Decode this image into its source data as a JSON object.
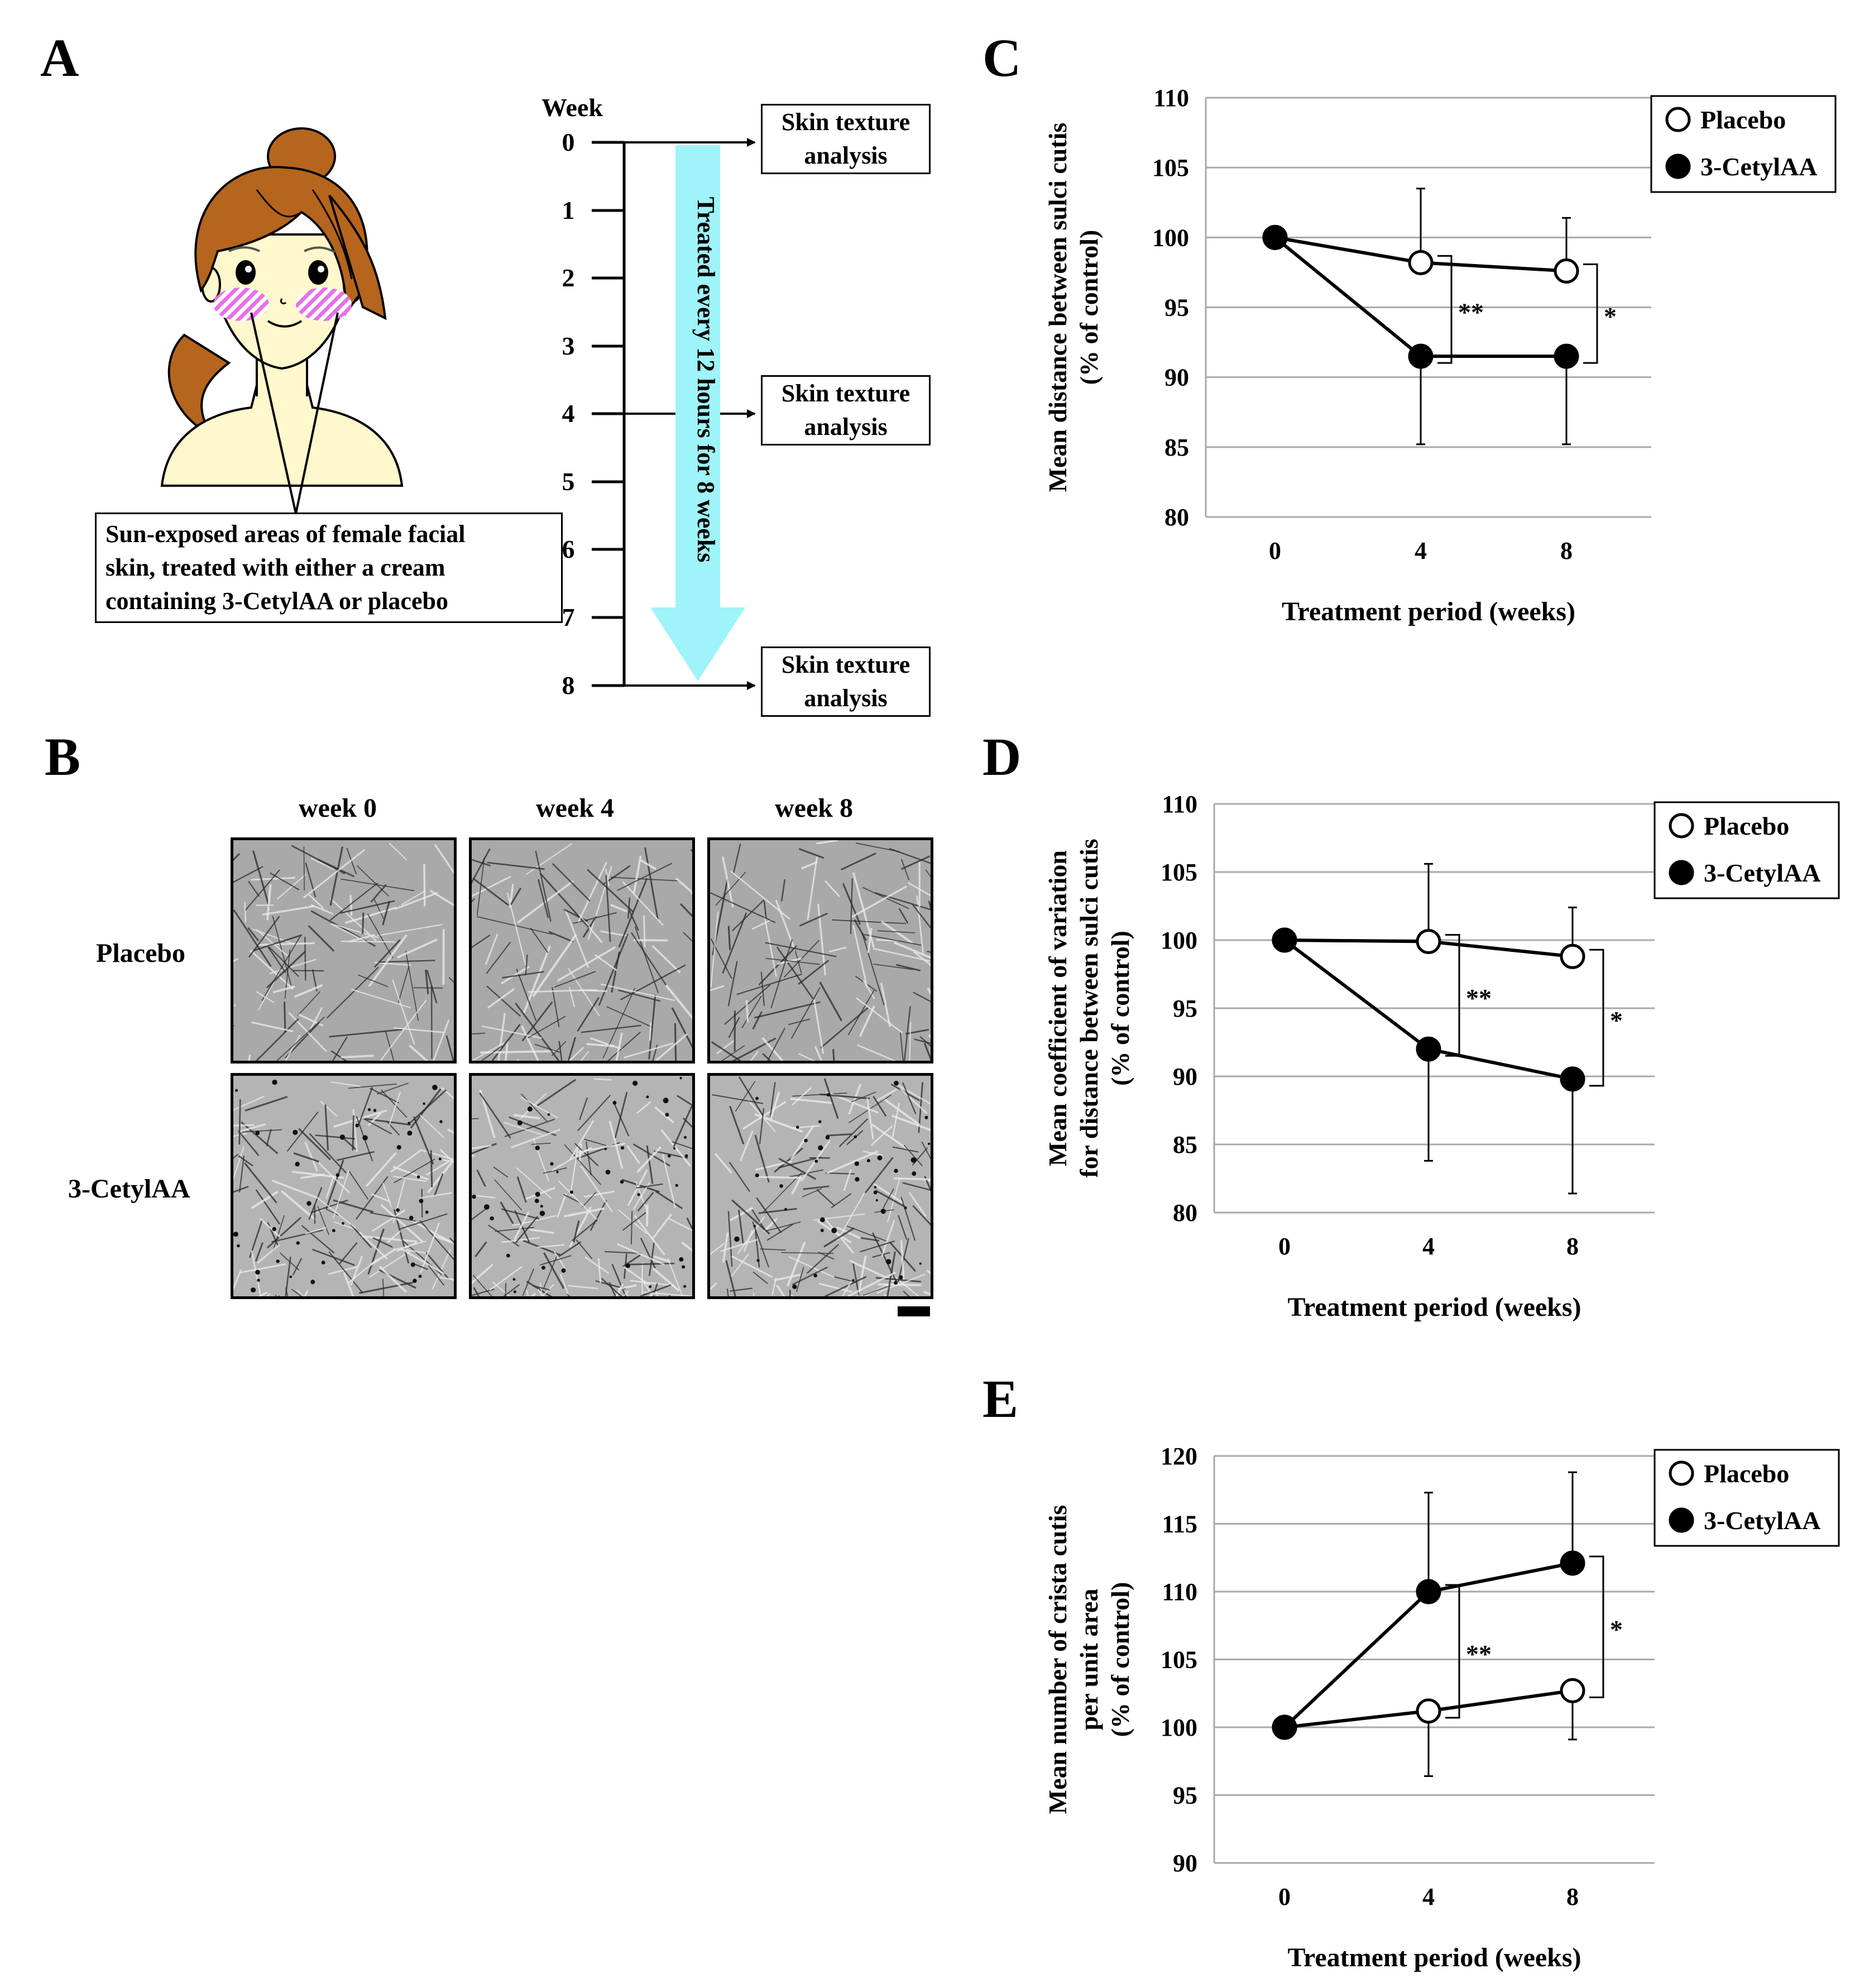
{
  "panels": {
    "a": "A",
    "b": "B",
    "c": "C",
    "d": "D",
    "e": "E"
  },
  "panelA": {
    "caption": [
      "Sun-exposed areas of female facial",
      "skin, treated with either a cream",
      "containing 3-CetylAA or placebo"
    ],
    "week_label": "Week",
    "weeks": [
      "0",
      "1",
      "2",
      "3",
      "4",
      "5",
      "6",
      "7",
      "8"
    ],
    "skin_box": [
      "Skin texture",
      "analysis"
    ],
    "treatment_arrow_text": "Treated every 12 hours for 8 weeks",
    "colors": {
      "hair": "#b5651d",
      "skin": "#fff8cc",
      "cheek": "#e870e8",
      "arrow": "#9ef4f8"
    }
  },
  "panelB": {
    "columns": [
      "week 0",
      "week 4",
      "week 8"
    ],
    "rows": [
      "Placebo",
      "3-CetylAA"
    ]
  },
  "chart_data": [
    {
      "type": "line",
      "panel": "C",
      "xlabel": "Treatment period (weeks)",
      "ylabel": [
        "Mean distance between sulci cutis",
        "(% of control)"
      ],
      "x": [
        0,
        4,
        8
      ],
      "ylim": [
        80,
        110
      ],
      "yticks": [
        80,
        85,
        90,
        95,
        100,
        105,
        110
      ],
      "grid": true,
      "legend": "top-right",
      "series": [
        {
          "name": "Placebo",
          "marker": "open-circle",
          "values": [
            100,
            98.2,
            97.6
          ],
          "err": [
            0,
            5.3,
            3.8
          ]
        },
        {
          "name": "3-CetylAA",
          "marker": "filled-circle",
          "values": [
            100,
            91.5,
            91.5
          ],
          "err": [
            0,
            6.3,
            6.3
          ]
        }
      ],
      "significance": [
        {
          "x": 4,
          "label": "**"
        },
        {
          "x": 8,
          "label": "*"
        }
      ]
    },
    {
      "type": "line",
      "panel": "D",
      "xlabel": "Treatment period (weeks)",
      "ylabel": [
        "Mean coefficient of variation",
        "for distance between sulci cutis",
        "(% of control)"
      ],
      "x": [
        0,
        4,
        8
      ],
      "ylim": [
        80,
        110
      ],
      "yticks": [
        80,
        85,
        90,
        95,
        100,
        105,
        110
      ],
      "grid": true,
      "legend": "top-right",
      "series": [
        {
          "name": "Placebo",
          "marker": "open-circle",
          "values": [
            100,
            99.9,
            98.8
          ],
          "err": [
            0,
            5.7,
            3.6
          ]
        },
        {
          "name": "3-CetylAA",
          "marker": "filled-circle",
          "values": [
            100,
            92.0,
            89.8
          ],
          "err": [
            0,
            8.2,
            8.4
          ]
        }
      ],
      "significance": [
        {
          "x": 4,
          "label": "**"
        },
        {
          "x": 8,
          "label": "*"
        }
      ]
    },
    {
      "type": "line",
      "panel": "E",
      "xlabel": "Treatment period (weeks)",
      "ylabel": [
        "Mean number of crista cutis",
        "per unit area",
        "(% of control)"
      ],
      "x": [
        0,
        4,
        8
      ],
      "ylim": [
        90,
        120
      ],
      "yticks": [
        90,
        95,
        100,
        105,
        110,
        115,
        120
      ],
      "grid": true,
      "legend": "top-right",
      "series": [
        {
          "name": "Placebo",
          "marker": "open-circle",
          "values": [
            100,
            101.2,
            102.7
          ],
          "err": [
            0,
            4.8,
            3.6
          ]
        },
        {
          "name": "3-CetylAA",
          "marker": "filled-circle",
          "values": [
            100,
            110.0,
            112.1
          ],
          "err": [
            0,
            7.3,
            6.7
          ]
        }
      ],
      "significance": [
        {
          "x": 4,
          "label": "**"
        },
        {
          "x": 8,
          "label": "*"
        }
      ]
    }
  ]
}
